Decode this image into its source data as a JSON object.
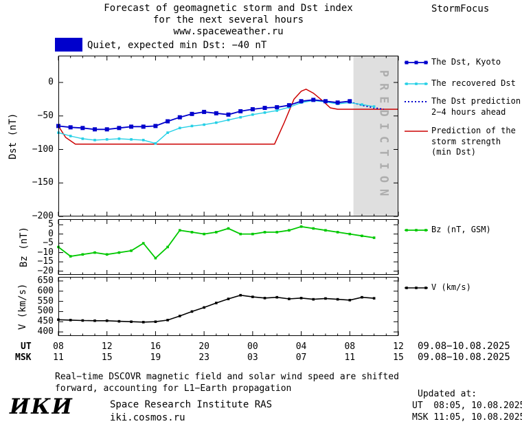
{
  "header": {
    "title_line1": "Forecast of geomagnetic storm and Dst index",
    "title_line2": "for the next several hours",
    "title_line3": "www.spaceweather.ru",
    "brand": "StormFocus"
  },
  "status": {
    "label": "Quiet, expected min Dst: −40 nT",
    "swatch_color": "#0000CC"
  },
  "xaxis": {
    "ut_label": "UT",
    "msk_label": "MSK",
    "ut_ticks": [
      "08",
      "12",
      "16",
      "20",
      "00",
      "04",
      "08",
      "12"
    ],
    "msk_ticks": [
      "11",
      "15",
      "19",
      "23",
      "03",
      "07",
      "11",
      "15"
    ],
    "ut_date": "09.08−10.08.2025",
    "msk_date": "09.08−10.08.2025"
  },
  "footnote": {
    "line1": "Real−time DSCOVR magnetic field and solar wind speed are shifted",
    "line2": "forward, accounting for L1−Earth propagation"
  },
  "footer": {
    "logo": "ИКИ",
    "institute": "Space Research Institute RAS",
    "site": "iki.cosmos.ru",
    "updated_label": "Updated at:",
    "updated_ut": "UT  08:05, 10.08.2025",
    "updated_msk": "MSK 11:05, 10.08.2025"
  },
  "chart_data": [
    {
      "type": "line",
      "ylabel": "Dst (nT)",
      "ylim": [
        -200,
        40
      ],
      "yticks": [
        0,
        -50,
        -100,
        -150,
        -200
      ],
      "xlim_hours": [
        0,
        28
      ],
      "prediction_zone": {
        "start_hour": 24.3,
        "label": "PREDICTION",
        "color": "#DFDFDF",
        "text_color": "#ADADAD"
      },
      "series": [
        {
          "name": "The Dst, Kyoto",
          "color": "#0000CC",
          "marker_size": 6,
          "line_width": 1.8,
          "x": [
            0,
            1,
            2,
            3,
            4,
            5,
            6,
            7,
            8,
            9,
            10,
            11,
            12,
            13,
            14,
            15,
            16,
            17,
            18,
            19,
            20,
            21,
            22,
            23,
            24
          ],
          "values": [
            -65,
            -67,
            -68,
            -70,
            -70,
            -68,
            -66,
            -66,
            -65,
            -58,
            -52,
            -47,
            -44,
            -46,
            -48,
            -43,
            -40,
            -38,
            -37,
            -34,
            -28,
            -26,
            -28,
            -30,
            -28
          ]
        },
        {
          "name": "The recovered Dst",
          "color": "#25D0E6",
          "marker_size": 3.6,
          "line_width": 1.4,
          "x": [
            0,
            1,
            2,
            3,
            4,
            5,
            6,
            7,
            8,
            9,
            10,
            11,
            12,
            13,
            14,
            15,
            16,
            17,
            18,
            19,
            20,
            21,
            22,
            23,
            24,
            25,
            26
          ],
          "values": [
            -75,
            -80,
            -84,
            -86,
            -85,
            -84,
            -85,
            -86,
            -91,
            -75,
            -68,
            -65,
            -63,
            -60,
            -56,
            -52,
            -48,
            -45,
            -42,
            -37,
            -30,
            -27,
            -29,
            -32,
            -30,
            -33,
            -36
          ]
        },
        {
          "name": "The Dst prediction 2−4 hours ahead",
          "color": "#0000CC",
          "style": "dotted",
          "line_width": 2,
          "x": [
            24,
            25,
            26,
            26.8
          ],
          "values": [
            -29,
            -34,
            -38,
            -40
          ]
        },
        {
          "name": "Prediction of the storm strength (min Dst)",
          "color": "#CC0000",
          "line_width": 1.5,
          "x": [
            0,
            0.6,
            1.4,
            17.8,
            18.6,
            19.4,
            20,
            20.4,
            21,
            21.8,
            22.4,
            23,
            28
          ],
          "values": [
            -65,
            -82,
            -92,
            -92,
            -60,
            -25,
            -13,
            -10,
            -16,
            -28,
            -38,
            -40,
            -40
          ]
        }
      ],
      "legend": [
        {
          "lines": [
            "The Dst, Kyoto"
          ]
        },
        {
          "lines": [
            "The recovered Dst"
          ]
        },
        {
          "lines": [
            "The Dst prediction",
            "2−4 hours ahead"
          ]
        },
        {
          "lines": [
            "Prediction of the",
            "storm strength",
            "(min Dst)"
          ]
        }
      ]
    },
    {
      "type": "line",
      "ylabel": "Bz (nT)",
      "ylim": [
        -22,
        8
      ],
      "yticks": [
        5,
        0,
        -5,
        -10,
        -15,
        -20
      ],
      "xlim_hours": [
        0,
        28
      ],
      "series": [
        {
          "name": "Bz (nT, GSM)",
          "color": "#00C800",
          "marker_size": 3.6,
          "line_width": 1.8,
          "x": [
            0,
            1,
            2,
            3,
            4,
            5,
            6,
            7,
            8,
            9,
            10,
            11,
            12,
            13,
            14,
            15,
            16,
            17,
            18,
            19,
            20,
            21,
            22,
            23,
            24,
            25,
            26
          ],
          "values": [
            -7,
            -12,
            -11,
            -10,
            -11,
            -10,
            -9,
            -5,
            -13,
            -7,
            2,
            1,
            0,
            1,
            3,
            0,
            0,
            1,
            1,
            2,
            4,
            3,
            2,
            1,
            0,
            -1,
            -2
          ]
        }
      ],
      "legend": [
        {
          "lines": [
            "Bz (nT, GSM)"
          ]
        }
      ]
    },
    {
      "type": "line",
      "ylabel": "V (km/s)",
      "ylim": [
        380,
        670
      ],
      "yticks": [
        650,
        600,
        550,
        500,
        450,
        400
      ],
      "xlim_hours": [
        0,
        28
      ],
      "series": [
        {
          "name": "V (km/s)",
          "color": "#000000",
          "marker_size": 3.6,
          "line_width": 1.6,
          "x": [
            0,
            1,
            2,
            3,
            4,
            5,
            6,
            7,
            8,
            9,
            10,
            11,
            12,
            13,
            14,
            15,
            16,
            17,
            18,
            19,
            20,
            21,
            22,
            23,
            24,
            25,
            26
          ],
          "values": [
            460,
            458,
            456,
            455,
            455,
            452,
            450,
            448,
            450,
            458,
            478,
            500,
            520,
            542,
            562,
            580,
            572,
            566,
            570,
            562,
            566,
            560,
            564,
            560,
            556,
            570,
            565
          ]
        }
      ],
      "legend": [
        {
          "lines": [
            "V (km/s)"
          ]
        }
      ]
    }
  ]
}
